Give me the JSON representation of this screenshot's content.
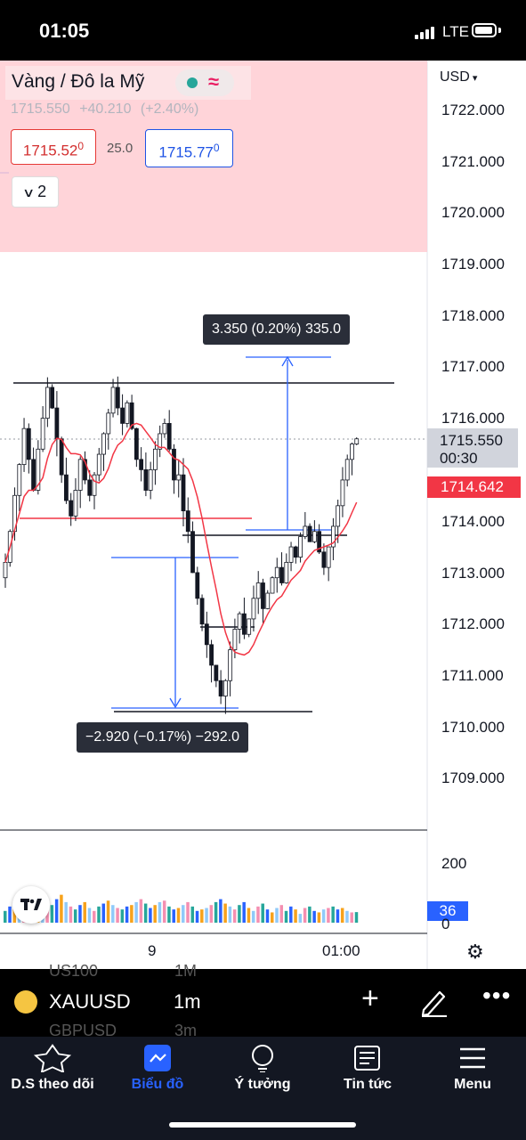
{
  "status_bar": {
    "time": "01:05",
    "network": "LTE"
  },
  "legend": {
    "title": "Vàng / Đô la Mỹ",
    "last": "1715.550",
    "change": "+40.210",
    "change_pct": "(+2.40%)",
    "bid": "1715.52",
    "bid_sup": "0",
    "spread": "25.0",
    "ask": "1715.77",
    "ask_sup": "0",
    "indicators_toggle": "2"
  },
  "price_axis": {
    "currency": "USD",
    "labels": [
      "1722.000",
      "1721.000",
      "1720.000",
      "1719.000",
      "1718.000",
      "1717.000",
      "1716.000",
      "1714.000",
      "1713.000",
      "1712.000",
      "1711.000",
      "1710.000",
      "1709.000"
    ],
    "current_price": "1715.550",
    "countdown": "00:30",
    "ma_value": "1714.642"
  },
  "volume_axis": {
    "label": "200",
    "current": "36",
    "zero": "0"
  },
  "time_axis": {
    "labels": [
      "9",
      "01:00"
    ]
  },
  "measurements": {
    "up": "3.350 (0.20%) 335.0",
    "down": "−2.920 (−0.17%) −292.0"
  },
  "colors": {
    "up": "#131722",
    "ma": "#f23645",
    "measure": "#2962ff",
    "vol_green": "#26a69a",
    "vol_blue": "#2962ff",
    "vol_orange": "#f7a21b"
  },
  "toolbar": {
    "symbol": "XAUUSD",
    "interval": "1m",
    "faded_top": "US100",
    "faded_top_interval": "1M",
    "faded_bottom": "GBPUSD",
    "faded_bottom_interval": "3m"
  },
  "tabs": [
    {
      "label": "D.S theo dõi",
      "icon": "star-icon"
    },
    {
      "label": "Biểu đồ",
      "icon": "chart-icon"
    },
    {
      "label": "Ý tưởng",
      "icon": "lightbulb-icon"
    },
    {
      "label": "Tin tức",
      "icon": "news-icon"
    },
    {
      "label": "Menu",
      "icon": "menu-icon"
    }
  ],
  "chart_data": {
    "type": "candlestick",
    "ylim": [
      1708.5,
      1722.5
    ],
    "close_series": [
      1713.2,
      1713.8,
      1714.5,
      1715.1,
      1715.8,
      1715.2,
      1714.6,
      1715.4,
      1716.0,
      1716.6,
      1716.2,
      1715.6,
      1714.9,
      1714.4,
      1714.1,
      1714.6,
      1715.2,
      1714.8,
      1714.5,
      1714.9,
      1715.3,
      1715.7,
      1716.1,
      1716.6,
      1716.2,
      1715.9,
      1716.3,
      1715.8,
      1715.2,
      1715.0,
      1714.6,
      1715.0,
      1715.4,
      1715.7,
      1715.9,
      1715.4,
      1714.8,
      1714.9,
      1714.2,
      1713.8,
      1713.0,
      1712.5,
      1712.0,
      1711.6,
      1711.2,
      1710.9,
      1710.6,
      1710.9,
      1711.5,
      1711.9,
      1712.2,
      1711.8,
      1712.1,
      1712.5,
      1712.8,
      1712.3,
      1712.6,
      1712.9,
      1713.1,
      1712.8,
      1713.2,
      1713.5,
      1713.3,
      1713.7,
      1713.9,
      1713.6,
      1713.8,
      1713.4,
      1713.1,
      1713.5,
      1713.9,
      1714.3,
      1714.8,
      1715.2,
      1715.5,
      1715.6
    ],
    "volume": [
      40,
      55,
      70,
      60,
      85,
      50,
      45,
      65,
      90,
      75,
      60,
      80,
      95,
      70,
      55,
      45,
      60,
      70,
      50,
      40,
      55,
      65,
      75,
      60,
      50,
      45,
      55,
      60,
      70,
      80,
      65,
      50,
      60,
      70,
      75,
      55,
      45,
      50,
      60,
      70,
      55,
      40,
      45,
      50,
      60,
      70,
      80,
      65,
      55,
      45,
      60,
      70,
      50,
      40,
      55,
      65,
      45,
      35,
      50,
      60,
      40,
      55,
      45,
      30,
      50,
      55,
      40,
      35,
      45,
      50,
      55,
      45,
      50,
      40,
      35,
      36
    ]
  }
}
